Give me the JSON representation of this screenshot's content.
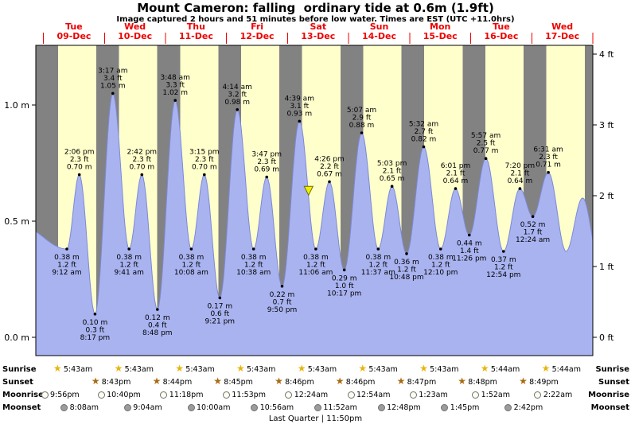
{
  "colors": {
    "night_band": "#828282",
    "day_band": "#ffffcc",
    "tide_fill": "#a9b3f0",
    "tide_stroke": "#7c89d8",
    "day_label_red": "#ee0000",
    "marker_fill": "#f0f000",
    "marker_stroke": "#6b6b00",
    "sunrise_star": "#e9b50d",
    "sunset_star": "#a86a10",
    "moonrise_fill": "#fffdf0",
    "moonset_fill": "#9c9c9c",
    "moon_border": "#6f6f6f"
  },
  "chart_data": {
    "type": "area",
    "title": "Mount Cameron: falling  ordinary tide at 0.6m (1.9ft)",
    "subtitle": "Image captured 2 hours and 51 minutes before low water. Times are EST (UTC +11.0hrs)",
    "y_axis_left": {
      "unit": "m",
      "ticks": [
        {
          "value": 0.0,
          "label": "0.0 m"
        },
        {
          "value": 0.5,
          "label": "0.5 m"
        },
        {
          "value": 1.0,
          "label": "1.0 m"
        }
      ]
    },
    "y_axis_right": {
      "unit": "ft",
      "ticks": [
        {
          "value": 0,
          "label": "0 ft"
        },
        {
          "value": 1,
          "label": "1 ft"
        },
        {
          "value": 2,
          "label": "2 ft"
        },
        {
          "value": 3,
          "label": "3 ft"
        },
        {
          "value": 4,
          "label": "4 ft"
        }
      ]
    },
    "time_axis": {
      "hours_total": 219,
      "origin": "Dec 8 9:00pm",
      "end": "Dec 18 12:00am"
    },
    "days": [
      {
        "weekday": "Tue",
        "date": "09-Dec"
      },
      {
        "weekday": "Wed",
        "date": "10-Dec"
      },
      {
        "weekday": "Thu",
        "date": "11-Dec"
      },
      {
        "weekday": "Fri",
        "date": "12-Dec"
      },
      {
        "weekday": "Sat",
        "date": "13-Dec"
      },
      {
        "weekday": "Sun",
        "date": "14-Dec"
      },
      {
        "weekday": "Mon",
        "date": "15-Dec"
      },
      {
        "weekday": "Tue",
        "date": "16-Dec"
      },
      {
        "weekday": "Wed",
        "date": "17-Dec"
      }
    ],
    "daylight_bands": [
      [
        8.72,
        23.72
      ],
      [
        32.72,
        47.73
      ],
      [
        56.72,
        71.75
      ],
      [
        80.72,
        95.77
      ],
      [
        104.72,
        119.77
      ],
      [
        128.72,
        143.78
      ],
      [
        152.72,
        167.8
      ],
      [
        176.73,
        191.82
      ],
      [
        200.73,
        215.82
      ]
    ],
    "tide_points": [
      {
        "t": -6.0,
        "h": 0.48,
        "synthetic": true
      },
      {
        "t": 12.2,
        "h": 0.38,
        "kind": "low",
        "lines": [
          "0.38 m",
          "1.2 ft",
          "9:12 am"
        ]
      },
      {
        "t": 17.1,
        "h": 0.7,
        "kind": "high",
        "lines": [
          "2:06 pm",
          "2.3 ft",
          "0.70 m"
        ]
      },
      {
        "t": 23.28,
        "h": 0.1,
        "kind": "low",
        "lines": [
          "0.10 m",
          "0.3 ft",
          "8:17 pm"
        ]
      },
      {
        "t": 30.28,
        "h": 1.05,
        "kind": "high",
        "lines": [
          "3:17 am",
          "3.4 ft",
          "1.05 m"
        ]
      },
      {
        "t": 36.68,
        "h": 0.38,
        "kind": "low",
        "lines": [
          "0.38 m",
          "1.2 ft",
          "9:41 am"
        ]
      },
      {
        "t": 41.7,
        "h": 0.7,
        "kind": "high",
        "lines": [
          "2:42 pm",
          "2.3 ft",
          "0.70 m"
        ]
      },
      {
        "t": 47.8,
        "h": 0.12,
        "kind": "low",
        "lines": [
          "0.12 m",
          "0.4 ft",
          "8:48 pm"
        ]
      },
      {
        "t": 54.8,
        "h": 1.02,
        "kind": "high",
        "lines": [
          "3:48 am",
          "3.3 ft",
          "1.02 m"
        ]
      },
      {
        "t": 61.13,
        "h": 0.38,
        "kind": "low",
        "lines": [
          "0.38 m",
          "1.2 ft",
          "10:08 am"
        ]
      },
      {
        "t": 66.25,
        "h": 0.7,
        "kind": "high",
        "lines": [
          "3:15 pm",
          "2.3 ft",
          "0.70 m"
        ]
      },
      {
        "t": 72.35,
        "h": 0.17,
        "kind": "low",
        "lines": [
          "0.17 m",
          "0.6 ft",
          "9:21 pm"
        ]
      },
      {
        "t": 79.23,
        "h": 0.98,
        "kind": "high",
        "lines": [
          "4:14 am",
          "3.2 ft",
          "0.98 m"
        ]
      },
      {
        "t": 85.63,
        "h": 0.38,
        "kind": "low",
        "lines": [
          "0.38 m",
          "1.2 ft",
          "10:38 am"
        ]
      },
      {
        "t": 90.78,
        "h": 0.69,
        "kind": "high",
        "lines": [
          "3:47 pm",
          "2.3 ft",
          "0.69 m"
        ]
      },
      {
        "t": 96.83,
        "h": 0.22,
        "kind": "low",
        "lines": [
          "0.22 m",
          "0.7 ft",
          "9:50 pm"
        ]
      },
      {
        "t": 103.65,
        "h": 0.93,
        "kind": "high",
        "lines": [
          "4:39 am",
          "3.1 ft",
          "0.93 m"
        ]
      },
      {
        "t": 110.1,
        "h": 0.38,
        "kind": "low",
        "lines": [
          "0.38 m",
          "1.2 ft",
          "11:06 am"
        ]
      },
      {
        "t": 115.43,
        "h": 0.67,
        "kind": "high",
        "lines": [
          "4:26 pm",
          "2.2 ft",
          "0.67 m"
        ]
      },
      {
        "t": 121.28,
        "h": 0.29,
        "kind": "low",
        "lines": [
          "0.29 m",
          "1.0 ft",
          "10:17 pm"
        ]
      },
      {
        "t": 128.12,
        "h": 0.88,
        "kind": "high",
        "lines": [
          "5:07 am",
          "2.9 ft",
          "0.88 m"
        ]
      },
      {
        "t": 134.62,
        "h": 0.38,
        "kind": "low",
        "lines": [
          "0.38 m",
          "1.2 ft",
          "11:37 am"
        ]
      },
      {
        "t": 140.05,
        "h": 0.65,
        "kind": "high",
        "lines": [
          "5:03 pm",
          "2.1 ft",
          "0.65 m"
        ]
      },
      {
        "t": 145.8,
        "h": 0.36,
        "kind": "low",
        "lines": [
          "0.36 m",
          "1.2 ft",
          "10:48 pm"
        ]
      },
      {
        "t": 152.53,
        "h": 0.82,
        "kind": "high",
        "lines": [
          "5:32 am",
          "2.7 ft",
          "0.82 m"
        ]
      },
      {
        "t": 159.17,
        "h": 0.38,
        "kind": "low",
        "lines": [
          "0.38 m",
          "1.2 ft",
          "12:10 pm"
        ]
      },
      {
        "t": 165.02,
        "h": 0.64,
        "kind": "high",
        "lines": [
          "6:01 pm",
          "2.1 ft",
          "0.64 m"
        ]
      },
      {
        "t": 170.43,
        "h": 0.44,
        "kind": "low",
        "lines": [
          "0.44 m",
          "1.4 ft",
          "11:26 pm"
        ]
      },
      {
        "t": 176.95,
        "h": 0.77,
        "kind": "high",
        "lines": [
          "5:57 am",
          "2.5 ft",
          "0.77 m"
        ]
      },
      {
        "t": 183.9,
        "h": 0.37,
        "kind": "low",
        "lines": [
          "0.37 m",
          "1.2 ft",
          "12:54 pm"
        ]
      },
      {
        "t": 190.33,
        "h": 0.64,
        "kind": "high",
        "lines": [
          "7:20 pm",
          "2.1 ft",
          "0.64 m"
        ]
      },
      {
        "t": 195.4,
        "h": 0.52,
        "kind": "low",
        "lines": [
          "0.52 m",
          "1.7 ft",
          "12:24 am"
        ]
      },
      {
        "t": 201.52,
        "h": 0.71,
        "kind": "high",
        "lines": [
          "6:31 am",
          "2.3 ft",
          "0.71 m"
        ]
      },
      {
        "t": 208.5,
        "h": 0.37,
        "synthetic": true
      },
      {
        "t": 215.0,
        "h": 0.6,
        "synthetic": true
      },
      {
        "t": 222.0,
        "h": 0.3,
        "synthetic": true
      }
    ],
    "marker": {
      "t": 107.25,
      "height_m": 0.6
    }
  },
  "astro": {
    "rows": [
      {
        "key": "sunrise",
        "label": "Sunrise",
        "icon": "sunrise-star-icon",
        "events": [
          {
            "t": 8.72,
            "time": "5:43am"
          },
          {
            "t": 32.72,
            "time": "5:43am"
          },
          {
            "t": 56.72,
            "time": "5:43am"
          },
          {
            "t": 80.72,
            "time": "5:43am"
          },
          {
            "t": 104.72,
            "time": "5:43am"
          },
          {
            "t": 128.72,
            "time": "5:43am"
          },
          {
            "t": 152.72,
            "time": "5:43am"
          },
          {
            "t": 176.73,
            "time": "5:44am"
          },
          {
            "t": 200.73,
            "time": "5:44am"
          }
        ]
      },
      {
        "key": "sunset",
        "label": "Sunset",
        "icon": "sunset-star-icon",
        "events": [
          {
            "t": 23.72,
            "time": "8:43pm"
          },
          {
            "t": 47.73,
            "time": "8:44pm"
          },
          {
            "t": 71.75,
            "time": "8:45pm"
          },
          {
            "t": 95.77,
            "time": "8:46pm"
          },
          {
            "t": 119.77,
            "time": "8:46pm"
          },
          {
            "t": 143.78,
            "time": "8:47pm"
          },
          {
            "t": 167.8,
            "time": "8:48pm"
          },
          {
            "t": 191.82,
            "time": "8:49pm"
          }
        ]
      },
      {
        "key": "moonrise",
        "label": "Moonrise",
        "icon": "moonrise-circle-icon",
        "events": [
          {
            "t": 0.93,
            "time": "9:56pm"
          },
          {
            "t": 25.67,
            "time": "10:40pm"
          },
          {
            "t": 50.3,
            "time": "11:18pm"
          },
          {
            "t": 74.88,
            "time": "11:53pm"
          },
          {
            "t": 99.4,
            "time": "12:24am"
          },
          {
            "t": 123.9,
            "time": "12:54am"
          },
          {
            "t": 148.38,
            "time": "1:23am"
          },
          {
            "t": 172.87,
            "time": "1:52am"
          },
          {
            "t": 197.37,
            "time": "2:22am"
          }
        ]
      },
      {
        "key": "moonset",
        "label": "Moonset",
        "icon": "moonset-circle-icon",
        "events": [
          {
            "t": 11.13,
            "time": "8:08am"
          },
          {
            "t": 36.07,
            "time": "9:04am"
          },
          {
            "t": 61.0,
            "time": "10:00am"
          },
          {
            "t": 85.93,
            "time": "10:56am"
          },
          {
            "t": 110.87,
            "time": "11:52am"
          },
          {
            "t": 135.8,
            "time": "12:48pm"
          },
          {
            "t": 160.75,
            "time": "1:45pm"
          },
          {
            "t": 185.7,
            "time": "2:42pm"
          }
        ]
      }
    ],
    "lunar_phase_display": "Last Quarter | 11:50pm"
  }
}
